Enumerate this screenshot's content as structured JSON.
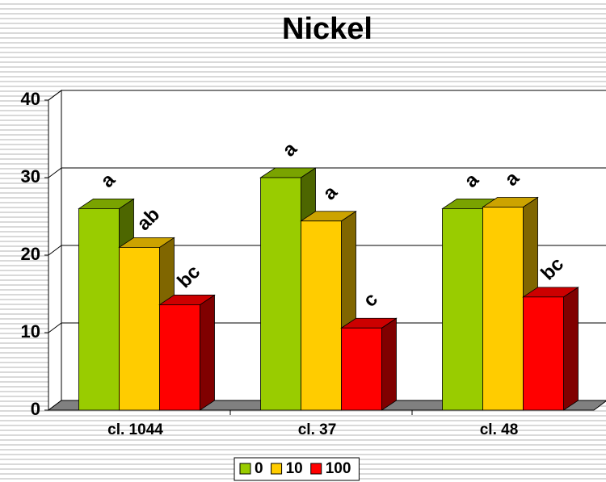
{
  "chart_data": {
    "type": "bar3d",
    "title": "Nickel",
    "categories": [
      "cl. 1044",
      "cl. 37",
      "cl. 48"
    ],
    "series": [
      {
        "name": "0",
        "color": "#99cc00",
        "values": [
          26,
          30,
          26
        ],
        "annotations": [
          "a",
          "a",
          "a"
        ]
      },
      {
        "name": "10",
        "color": "#ffcc00",
        "values": [
          21,
          24.4,
          26.2
        ],
        "annotations": [
          "ab",
          "a",
          "a"
        ]
      },
      {
        "name": "100",
        "color": "#ff0000",
        "values": [
          13.6,
          10.6,
          14.6
        ],
        "annotations": [
          "bc",
          "c",
          "bc"
        ]
      }
    ],
    "ylim": [
      0,
      40
    ],
    "yticks": [
      0,
      10,
      20,
      30,
      40
    ],
    "grid": true,
    "legend": "bottom"
  }
}
